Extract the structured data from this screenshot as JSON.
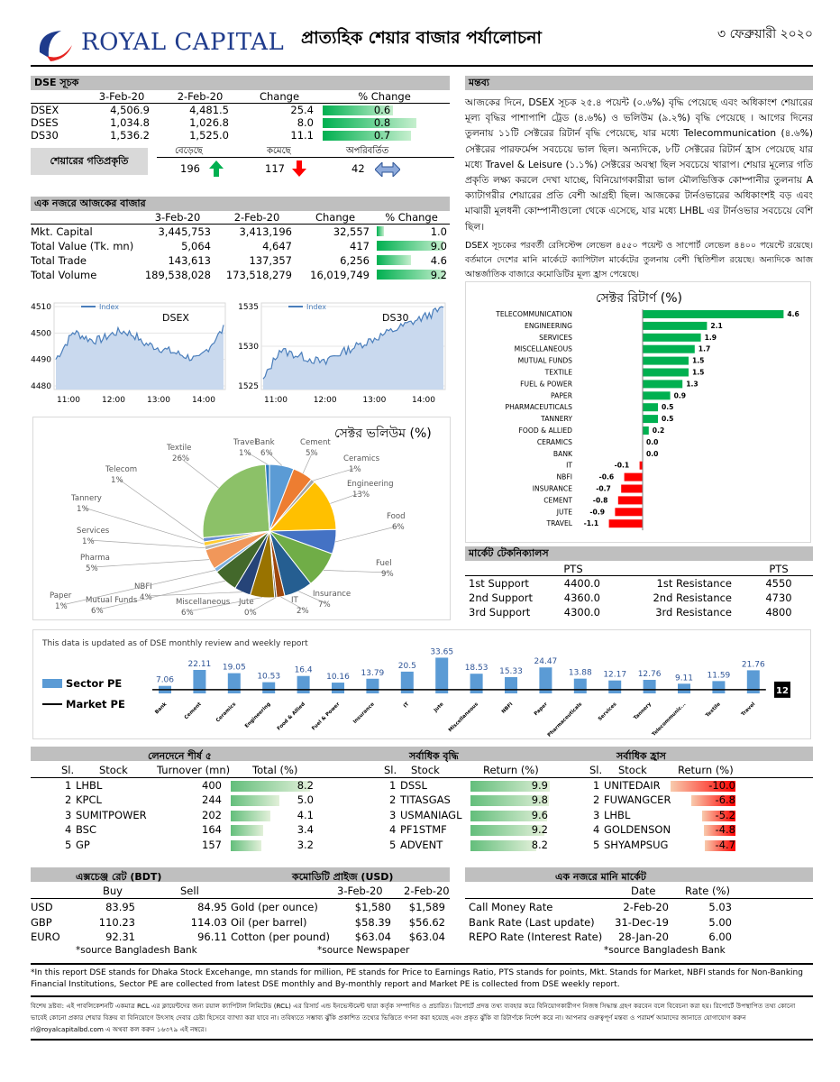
{
  "header": {
    "logo_text": "ROYAL CAPITAL",
    "title": "প্রাত্যহিক শেয়ার বাজার পর্যালোচনা",
    "date": "৩ ফেব্রুয়ারী ২০২০"
  },
  "dse_index": {
    "section_title": "DSE সূচক",
    "columns": [
      "",
      "3-Feb-20",
      "2-Feb-20",
      "Change",
      "% Change"
    ],
    "rows": [
      {
        "name": "DSEX",
        "today": "4,506.9",
        "prev": "4,481.5",
        "change": "25.4",
        "pct": "0.6",
        "frac": 0.6
      },
      {
        "name": "DSES",
        "today": "1,034.8",
        "prev": "1,026.8",
        "change": "8.0",
        "pct": "0.8",
        "frac": 0.8
      },
      {
        "name": "DS30",
        "today": "1,536.2",
        "prev": "1,525.0",
        "change": "11.1",
        "pct": "0.7",
        "frac": 0.75
      }
    ],
    "trend_label": "শেয়ারের গতিপ্রকৃতি",
    "trend_heads": [
      "বেড়েছে",
      "কমেছে",
      "অপরিবর্তিত"
    ],
    "trend_vals": [
      "196",
      "117",
      "42"
    ]
  },
  "market_glance": {
    "section_title": "এক নজরে আজকের বাজার",
    "columns": [
      "",
      "3-Feb-20",
      "2-Feb-20",
      "Change",
      "% Change"
    ],
    "rows": [
      {
        "name": "Mkt. Capital",
        "today": "3,445,753",
        "prev": "3,413,196",
        "change": "32,557",
        "pct": "1.0",
        "frac": 0.11
      },
      {
        "name": "Total Value (Tk. mn)",
        "today": "5,064",
        "prev": "4,647",
        "change": "417",
        "pct": "9.0",
        "frac": 0.98
      },
      {
        "name": "Total Trade",
        "today": "143,613",
        "prev": "137,357",
        "change": "6,256",
        "pct": "4.6",
        "frac": 0.5
      },
      {
        "name": "Total Volume",
        "today": "189,538,028",
        "prev": "173,518,279",
        "change": "16,019,749",
        "pct": "9.2",
        "frac": 1.0
      }
    ]
  },
  "index_charts": {
    "dsex": {
      "title": "DSEX",
      "legend": "Index",
      "yticks": [
        "4510",
        "4500",
        "4490",
        "4480"
      ],
      "xticks": [
        "11:00",
        "12:00",
        "13:00",
        "14:00"
      ]
    },
    "ds30": {
      "title": "DS30",
      "legend": "Index",
      "yticks": [
        "1535",
        "1530",
        "1525"
      ],
      "xticks": [
        "11:00",
        "12:00",
        "13:00",
        "14:00"
      ]
    }
  },
  "comment": {
    "section_title": "মন্তব্য",
    "para1": "আজকের দিনে, DSEX সূচক ২৫.৪ পয়েন্ট (০.৬%) বৃদ্ধি পেয়েছে এবং অধিকাংশ শেয়ারের মূল্য বৃদ্ধির পাশাপাশি ট্রেড (৪.৬%) ও ভলিউম (৯.২%) বৃদ্ধি পেয়েছে । আগের দিনের তুলনায় ১১টি সেক্টরের রিটার্ন বৃদ্ধি পেয়েছে, যার মধ্যে Telecommunication (৪.৬%) সেক্টরের পারফর্মেন্স সবচেয়ে ভাল ছিল। অন্যদিকে, ৮টি সেক্টরের রিটার্ন হ্রাস পেয়েছে যার মধ্যে Travel & Leisure (১.১%) সেক্টরের অবস্থা ছিল সবচেয়ে খারাপ। শেয়ার মূল্যের গতি প্রকৃতি লক্ষ্য করলে দেখা যাচ্ছে, বিনিয়োগকারীরা ভাল মৌলভিত্তিক কোম্পানীর তুলনায় A ক্যাটাগরীর শেয়ারের প্রতি বেশী আগ্রহী ছিল। আজকের টার্নওভারের অধিকাংশই বড় এবং মাঝারী মূলধনী কোম্পানীগুলো থেকে এসেছে, যার মধ্যে LHBL এর টার্নওভার সবচেয়ে বেশি ছিল।",
    "para2": "DSEX সূচকের পরবর্তী রেসিস্টেন্স লেভেল ৪৫৫০ পয়েন্ট ও সাপোর্ট লেভেল ৪৪০০ পয়েন্টে রয়েছে। বর্তমানে দেশের মানি মার্কেটে ক্যাপিটাল মার্কেটের তুলনায় বেশী স্থিতিশীল রয়েছে। অন্যদিকে আজ আন্তর্জাতিক বাজারে কমোডিটির মূল্য হ্রাস পেয়েছে।"
  },
  "sector_return": {
    "title": "সেক্টর রিটার্ণ (%)",
    "items": [
      {
        "name": "TELECOMMUNICATION",
        "value": 4.6,
        "label": "4.6"
      },
      {
        "name": "ENGINEERING",
        "value": 2.1,
        "label": "2.1"
      },
      {
        "name": "SERVICES",
        "value": 1.9,
        "label": "1.9"
      },
      {
        "name": "MISCELLANEOUS",
        "value": 1.7,
        "label": "1.7"
      },
      {
        "name": "MUTUAL FUNDS",
        "value": 1.5,
        "label": "1.5"
      },
      {
        "name": "TEXTILE",
        "value": 1.5,
        "label": "1.5"
      },
      {
        "name": "FUEL & POWER",
        "value": 1.3,
        "label": "1.3"
      },
      {
        "name": "PAPER",
        "value": 0.9,
        "label": "0.9"
      },
      {
        "name": "PHARMACEUTICALS",
        "value": 0.5,
        "label": "0.5"
      },
      {
        "name": "TANNERY",
        "value": 0.5,
        "label": "0.5"
      },
      {
        "name": "FOOD & ALLIED",
        "value": 0.2,
        "label": "0.2"
      },
      {
        "name": "CERAMICS",
        "value": 0.0,
        "label": "0.0"
      },
      {
        "name": "BANK",
        "value": 0.0,
        "label": "0.0"
      },
      {
        "name": "IT",
        "value": -0.1,
        "label": "-0.1"
      },
      {
        "name": "NBFI",
        "value": -0.6,
        "label": "-0.6"
      },
      {
        "name": "INSURANCE",
        "value": -0.7,
        "label": "-0.7"
      },
      {
        "name": "CEMENT",
        "value": -0.8,
        "label": "-0.8"
      },
      {
        "name": "JUTE",
        "value": -0.9,
        "label": "-0.9"
      },
      {
        "name": "TRAVEL",
        "value": -1.1,
        "label": "-1.1"
      }
    ]
  },
  "sector_volume": {
    "title": "সেক্টর ভলিউম (%)",
    "slices": [
      {
        "name": "Bank",
        "pct": "6%",
        "value": 6,
        "color": "#5b9bd5"
      },
      {
        "name": "Cement",
        "pct": "5%",
        "value": 5,
        "color": "#ed7d31"
      },
      {
        "name": "Ceramics",
        "pct": "1%",
        "value": 1,
        "color": "#a5a5a5"
      },
      {
        "name": "Engineering",
        "pct": "13%",
        "value": 13,
        "color": "#ffc000"
      },
      {
        "name": "Food",
        "pct": "6%",
        "value": 6,
        "color": "#4472c4"
      },
      {
        "name": "Fuel",
        "pct": "9%",
        "value": 9,
        "color": "#70ad47"
      },
      {
        "name": "Insurance",
        "pct": "7%",
        "value": 7,
        "color": "#255e91"
      },
      {
        "name": "IT",
        "pct": "2%",
        "value": 2,
        "color": "#9e480e"
      },
      {
        "name": "Jute",
        "pct": "0%",
        "value": 0.5,
        "color": "#636363"
      },
      {
        "name": "Miscellaneous",
        "pct": "6%",
        "value": 6,
        "color": "#997300"
      },
      {
        "name": "NBFI",
        "pct": "4%",
        "value": 4,
        "color": "#264478"
      },
      {
        "name": "Mutual Funds",
        "pct": "6%",
        "value": 6,
        "color": "#43682b"
      },
      {
        "name": "Paper",
        "pct": "1%",
        "value": 1,
        "color": "#7cafdd"
      },
      {
        "name": "Pharma",
        "pct": "5%",
        "value": 5,
        "color": "#f1975a"
      },
      {
        "name": "Services",
        "pct": "1%",
        "value": 1,
        "color": "#b7b7b7"
      },
      {
        "name": "Tannery",
        "pct": "1%",
        "value": 1,
        "color": "#ffcd33"
      },
      {
        "name": "Telecom",
        "pct": "1%",
        "value": 1,
        "color": "#698ed0"
      },
      {
        "name": "Textile",
        "pct": "26%",
        "value": 26,
        "color": "#8cc168"
      },
      {
        "name": "Travel",
        "pct": "1%",
        "value": 1,
        "color": "#327dc2"
      }
    ]
  },
  "technicals": {
    "section_title": "মার্কেট টেকনিক্যালস",
    "pts_head": "PTS",
    "rows": [
      {
        "s": "1st Support",
        "sv": "4400.0",
        "r": "1st Resistance",
        "rv": "4550"
      },
      {
        "s": "2nd Support",
        "sv": "4360.0",
        "r": "2nd Resistance",
        "rv": "4730"
      },
      {
        "s": "3rd Support",
        "sv": "4300.0",
        "r": "3rd Resistance",
        "rv": "4800"
      }
    ]
  },
  "pe_chart": {
    "note": "This data is updated as of DSE monthly review and weekly report",
    "legend_sector": "Sector PE",
    "legend_market": "Market PE",
    "market_pe_label": "12",
    "market_pe": 12,
    "categories": [
      "Bank",
      "Cement",
      "Ceramics",
      "Engineering",
      "Food & Allied",
      "Fuel & Power",
      "Insurance",
      "IT",
      "Jute",
      "Miscellaneous",
      "NBFI",
      "Paper",
      "Pharmaceuticals",
      "Services",
      "Tannery",
      "Telecommunic...",
      "Textile",
      "Travel"
    ],
    "values": [
      7.06,
      22.11,
      19.05,
      10.53,
      16.4,
      10.16,
      13.79,
      20.5,
      33.65,
      18.53,
      15.33,
      24.47,
      13.88,
      12.17,
      12.76,
      9.11,
      11.59,
      21.76
    ],
    "labels": [
      "7.06",
      "22.11",
      "19.05",
      "10.53",
      "16.4",
      "10.16",
      "13.79",
      "20.5",
      "33.65",
      "18.53",
      "15.33",
      "24.47",
      "13.88",
      "12.17",
      "12.76",
      "9.11",
      "11.59",
      "21.76"
    ]
  },
  "top5": {
    "turnover_title": "লেনদেনে শীর্ষ ৫",
    "gain_title": "সর্বাধিক বৃদ্ধি",
    "loss_title": "সর্বাধিক হ্রাস",
    "turnover_cols": [
      "Sl.",
      "Stock",
      "Turnover (mn)",
      "Total (%)"
    ],
    "gain_cols": [
      "Sl.",
      "Stock",
      "Return (%)"
    ],
    "loss_cols": [
      "Sl.",
      "Stock",
      "Return (%)"
    ],
    "turnover": [
      {
        "sl": "1",
        "stock": "LHBL",
        "tv": "400",
        "pct": "8.2",
        "frac": 1.0
      },
      {
        "sl": "2",
        "stock": "KPCL",
        "tv": "244",
        "pct": "5.0",
        "frac": 0.61
      },
      {
        "sl": "3",
        "stock": "SUMITPOWER",
        "tv": "202",
        "pct": "4.1",
        "frac": 0.5
      },
      {
        "sl": "4",
        "stock": "BSC",
        "tv": "164",
        "pct": "3.4",
        "frac": 0.41
      },
      {
        "sl": "5",
        "stock": "GP",
        "tv": "157",
        "pct": "3.2",
        "frac": 0.39
      }
    ],
    "gain": [
      {
        "sl": "1",
        "stock": "DSSL",
        "ret": "9.9",
        "frac": 1.0
      },
      {
        "sl": "2",
        "stock": "TITASGAS",
        "ret": "9.8",
        "frac": 0.99
      },
      {
        "sl": "3",
        "stock": "USMANIAGL",
        "ret": "9.6",
        "frac": 0.97
      },
      {
        "sl": "4",
        "stock": "PF1STMF",
        "ret": "9.2",
        "frac": 0.93
      },
      {
        "sl": "5",
        "stock": "ADVENT",
        "ret": "8.2",
        "frac": 0.83
      }
    ],
    "loss": [
      {
        "sl": "1",
        "stock": "UNITEDAIR",
        "ret": "-10.0",
        "frac": 1.0
      },
      {
        "sl": "2",
        "stock": "FUWANGCER",
        "ret": "-6.8",
        "frac": 0.68
      },
      {
        "sl": "3",
        "stock": "LHBL",
        "ret": "-5.2",
        "frac": 0.52
      },
      {
        "sl": "4",
        "stock": "GOLDENSON",
        "ret": "-4.8",
        "frac": 0.48
      },
      {
        "sl": "5",
        "stock": "SHYAMPSUG",
        "ret": "-4.7",
        "frac": 0.47
      }
    ]
  },
  "exchange": {
    "title": "এক্সচেঞ্জ রেট (BDT)",
    "cols": [
      "Buy",
      "Sell"
    ],
    "rows": [
      {
        "cur": "USD",
        "buy": "83.95",
        "sell": "84.95"
      },
      {
        "cur": "GBP",
        "buy": "110.23",
        "sell": "114.03"
      },
      {
        "cur": "EURO",
        "buy": "92.31",
        "sell": "96.11"
      }
    ],
    "source": "*source Bangladesh Bank"
  },
  "commodity": {
    "title": "কমোডিটি প্রাইজ (USD)",
    "cols": [
      "3-Feb-20",
      "2-Feb-20"
    ],
    "rows": [
      {
        "name": "Gold (per ounce)",
        "today": "$1,580",
        "prev": "$1,589"
      },
      {
        "name": "Oil (per barrel)",
        "today": "$58.39",
        "prev": "$56.62"
      },
      {
        "name": "Cotton (per pound)",
        "today": "$63.04",
        "prev": "$63.04"
      }
    ],
    "source": "*source Newspaper"
  },
  "money_market": {
    "title": "এক নজরে মানি মার্কেট",
    "cols": [
      "Date",
      "Rate (%)"
    ],
    "rows": [
      {
        "name": "Call Money Rate",
        "date": "2-Feb-20",
        "rate": "5.03"
      },
      {
        "name": "Bank Rate (Last update)",
        "date": "31-Dec-19",
        "rate": "5.00"
      },
      {
        "name": "REPO Rate (Interest Rate)",
        "date": "28-Jan-20",
        "rate": "6.00"
      }
    ],
    "source": "*source Bangladesh Bank"
  },
  "footer": {
    "note": "*In this report DSE stands for Dhaka Stock Excehange, mn stands for million, PE stands for Price to Earnings Ratio, PTS stands for points, Mkt. Stands for Market, NBFI stands for Non-Banking Financial Institutions, Sector PE are collected from latest DSE monthly and By-monthly report and Market PE is collected from DSE weekly report.",
    "disclaimer": "বিশেষ দ্রষ্টব্য: এই পাবলিকেশনটি একমাত্র RCL এর ক্লায়েন্টদের জন্য রয়াল ক্যাপিটাল লিমিটেড (RCL) এর রিসার্চ এন্ড ইনভেস্টমেন্ট দ্বারা কর্তৃক সম্পাদিত ও প্রচারিত। রিপোর্টে প্রদত্ত তথ্য ব্যবহার করে বিনিয়োগকারীগণ নিজস্ব সিদ্ধান্ত গ্রহণ করবেন বলে বিবেচনা করা হয়। রিপোর্টে উপস্থাপিত তথ্য কোনো ভাবেই কোনো প্রকার শেয়ার বিক্রয় বা বিনিয়োগে উৎসাহ দেবার চেষ্টা হিসেবে ব্যাখ্যা করা যাবে না। তবিষ্যতে সম্ভাব্য ঝুঁকি প্রকাশিত তথ্যের ভিত্তিতে গণনা করা হয়েছে এবং প্রকৃত ঝুঁকি বা রিটার্ণকে নির্দেশ করে না। আপনার গুরুত্বপূর্ণ মন্তব্য ও পরামর্শ আমাদের জানাতে যোগাযোগ করুন rl@royalcapitalbd.com এ অথবা কল করুন ১৬৩৭৯ এই নম্বরে।"
  },
  "colors": {
    "green": "#00b050",
    "red": "#ff0000",
    "header_gray": "#bfbfbf",
    "bar_blue": "#5b9bd5"
  }
}
